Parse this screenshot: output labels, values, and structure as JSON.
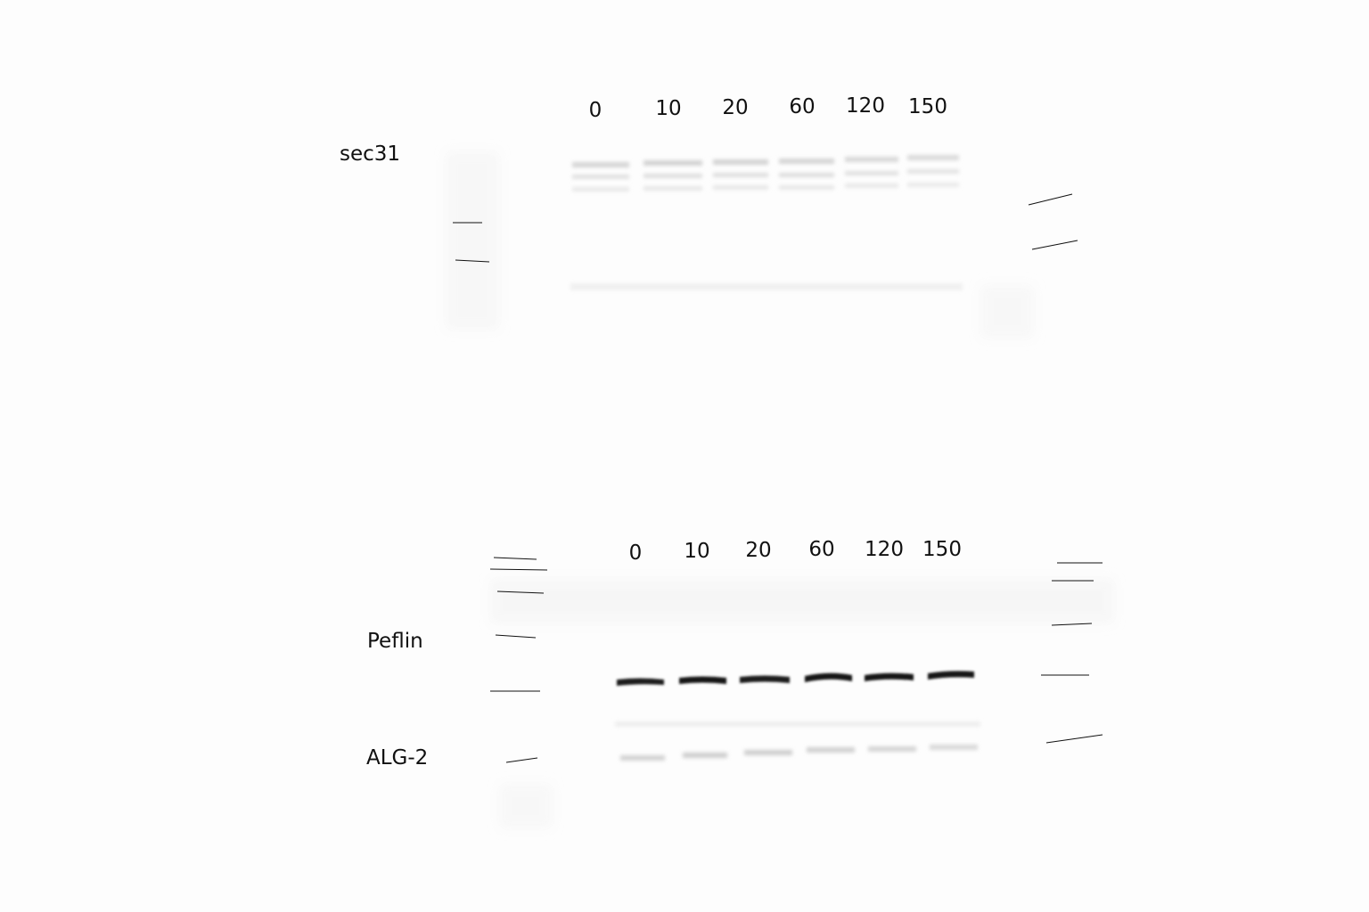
{
  "top_blot": {
    "protein_label": "sec31",
    "lanes": [
      "0",
      "10",
      "20",
      "60",
      "120",
      "150"
    ]
  },
  "bottom_blot": {
    "upper_protein_label": "Peflin",
    "lower_protein_label": "ALG-2",
    "lanes": [
      "0",
      "10",
      "20",
      "60",
      "120",
      "150"
    ]
  }
}
